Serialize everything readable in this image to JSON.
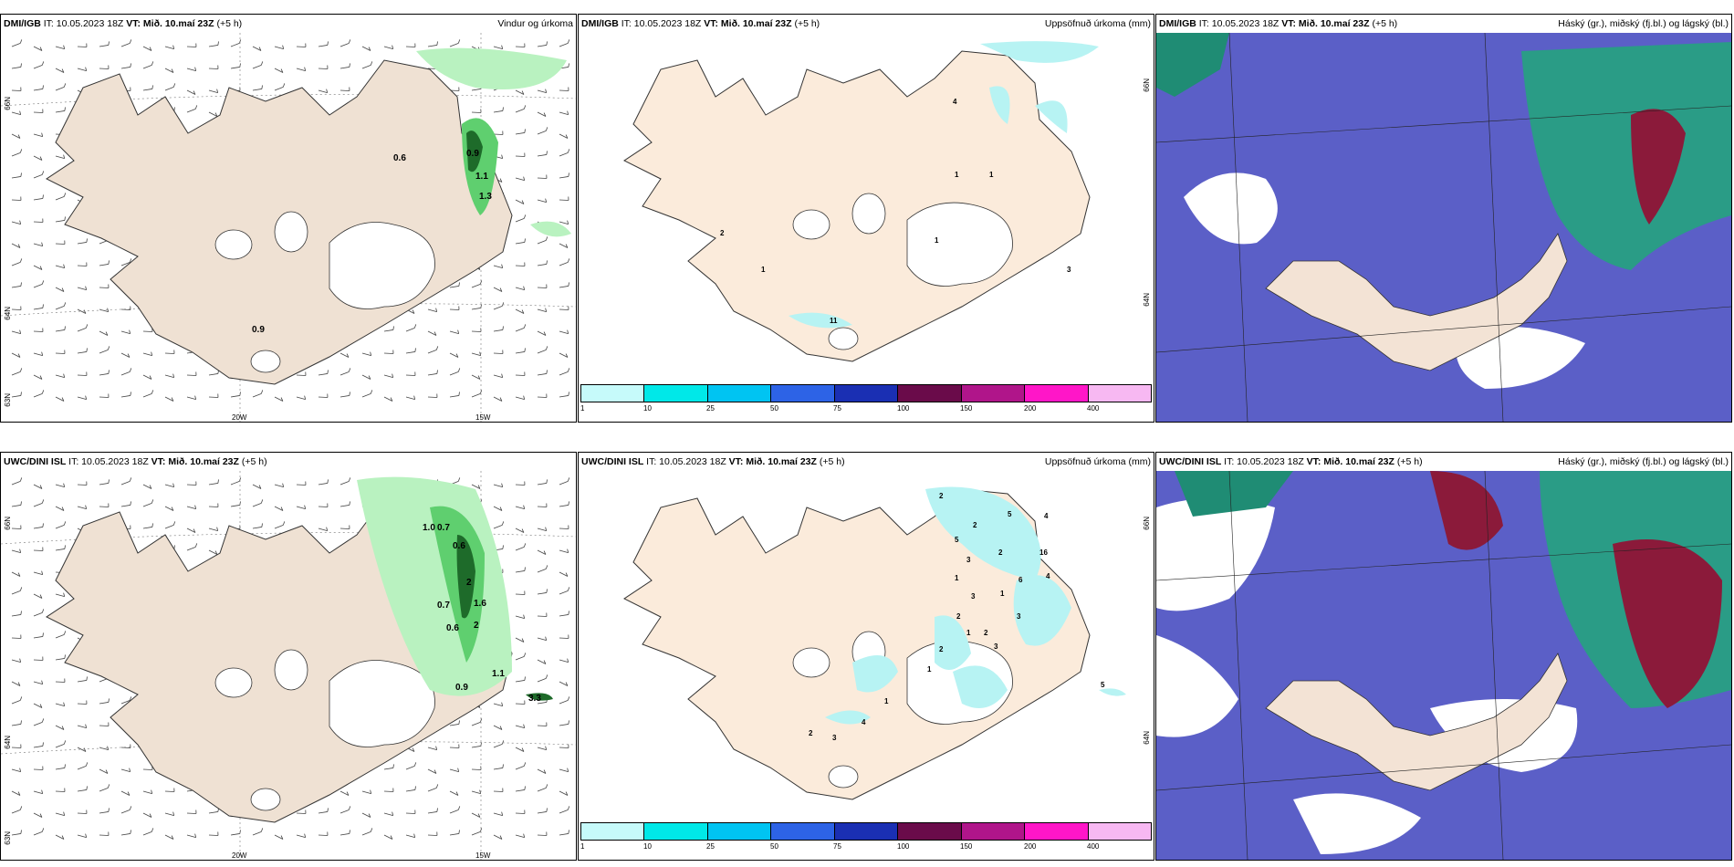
{
  "colors": {
    "land": "#f6e6d6",
    "land_alt": "#efe3d8",
    "sea_cloud": "#5b5fc7",
    "rain_light": "#b9f2c0",
    "rain_dark": "#1e6b2a",
    "precip_cyan": "#b7f3f3",
    "cloud_high": "#2a9c86",
    "cloud_mid": "#8b1a3a"
  },
  "colorbar": {
    "colors": [
      "#c6fafa",
      "#00e8e8",
      "#00c4f2",
      "#2d63e6",
      "#1a2fb3",
      "#6a0b4a",
      "#b0158a",
      "#ff16c8",
      "#f7b8f2"
    ],
    "ticks": [
      "1",
      "10",
      "25",
      "50",
      "75",
      "100",
      "150",
      "200",
      "400"
    ]
  },
  "panels": [
    {
      "model": "DMI/IGB",
      "it": " IT: 10.05.2023 18Z ",
      "vt_label": "VT: Mið. 10.maí 23Z",
      "lead": " (+5 h)",
      "title_right": "Vindur og úrkoma",
      "type": "wind",
      "lat_labels": [
        "66N",
        "64N",
        "63N"
      ],
      "lon_labels": [
        "20W",
        "15W"
      ],
      "values": [
        "0.6",
        "0.9",
        "1.1",
        "1.3",
        "0.9"
      ]
    },
    {
      "model": "DMI/IGB",
      "it": " IT: 10.05.2023 18Z ",
      "vt_label": "VT: Mið. 10.maí 23Z",
      "lead": " (+5 h)",
      "title_right": "Uppsöfnuð úrkoma (mm)",
      "type": "precip",
      "lat_labels": [
        "66N",
        "64N"
      ],
      "values": [
        "4",
        "1",
        "1",
        "2",
        "1",
        "1",
        "3",
        "11"
      ]
    },
    {
      "model": "DMI/IGB",
      "it": " IT: 10.05.2023 18Z ",
      "vt_label": "VT: Mið. 10.maí 23Z",
      "lead": " (+5 h)",
      "title_right": "Háský (gr.), miðský (fj.bl.) og lágský (bl.)",
      "type": "cloud"
    },
    {
      "model": "UWC/DINI ISL",
      "it": " IT: 10.05.2023 18Z ",
      "vt_label": "VT: Mið. 10.maí 23Z",
      "lead": " (+5 h)",
      "title_right": "",
      "type": "wind",
      "lat_labels": [
        "66N",
        "64N",
        "63N"
      ],
      "lon_labels": [
        "20W",
        "15W"
      ],
      "values": [
        "1.0",
        "0.7",
        "0.6",
        "2",
        "0.7",
        "1.6",
        "0.6",
        "2",
        "1.1",
        "0.9",
        "3.3"
      ]
    },
    {
      "model": "UWC/DINI ISL",
      "it": " IT: 10.05.2023 18Z ",
      "vt_label": "VT: Mið. 10.maí 23Z",
      "lead": " (+5 h)",
      "title_right": "Uppsöfnuð úrkoma (mm)",
      "type": "precip",
      "lat_labels": [
        "66N",
        "64N"
      ],
      "values": [
        "2",
        "4",
        "5",
        "5",
        "2",
        "16",
        "3",
        "2",
        "1",
        "6",
        "4",
        "3",
        "1",
        "2",
        "1",
        "2",
        "2",
        "3",
        "5",
        "4",
        "1",
        "2",
        "3",
        "3",
        "1"
      ]
    },
    {
      "model": "UWC/DINI ISL",
      "it": " IT: 10.05.2023 18Z ",
      "vt_label": "VT: Mið. 10.maí 23Z",
      "lead": " (+5 h)",
      "title_right": "Háský (gr.), miðský (fj.bl.) og lágský (bl.)",
      "type": "cloud"
    }
  ]
}
